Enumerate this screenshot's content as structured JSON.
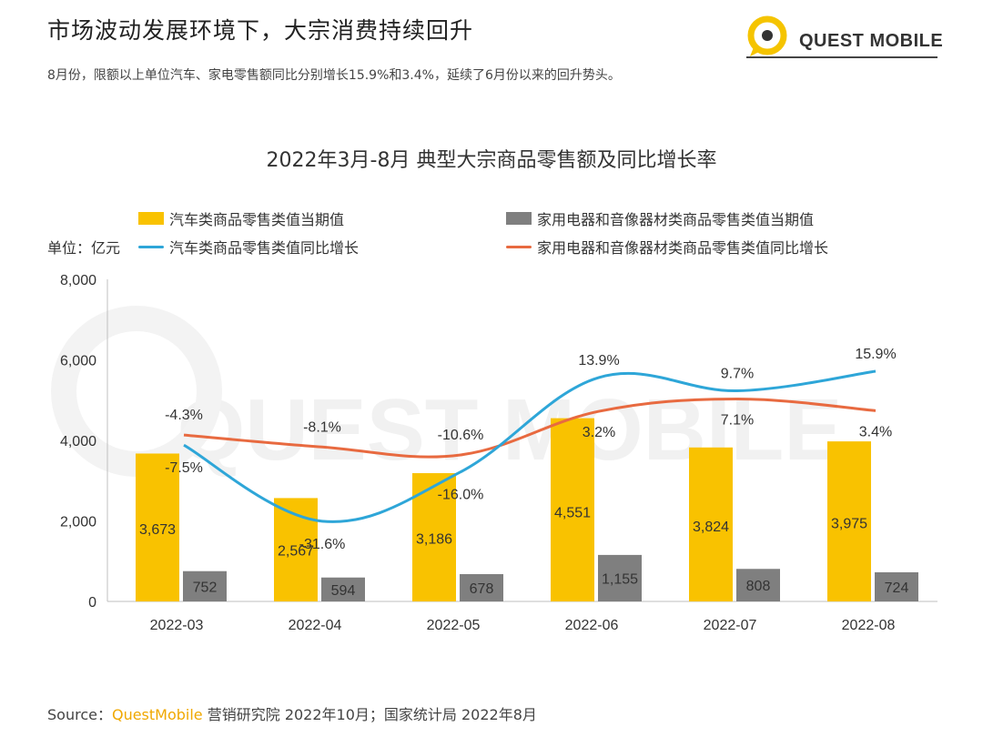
{
  "header": {
    "title": "市场波动发展环境下，大宗消费持续回升",
    "subtitle": "8月份，限额以上单位汽车、家电零售额同比分别增长15.9%和3.4%，延续了6月份以来的回升势头。",
    "logo_text": "QUEST MOBILE",
    "watermark_text": "QUEST MOBILE"
  },
  "colors": {
    "car_bar": "#F9C200",
    "appliance_bar": "#7F7F7F",
    "car_line": "#2EA6D8",
    "appliance_line": "#E86A40",
    "logo_yellow": "#F5C400"
  },
  "chart_data": {
    "type": "bar",
    "title": "2022年3月-8月 典型大宗商品零售额及同比增长率",
    "unit_label": "单位：亿元",
    "categories": [
      "2022-03",
      "2022-04",
      "2022-05",
      "2022-06",
      "2022-07",
      "2022-08"
    ],
    "y_ticks": [
      "8,000",
      "6,000",
      "4,000",
      "2,000",
      "0"
    ],
    "ylim": [
      0,
      8000
    ],
    "series": [
      {
        "name": "汽车类商品零售类值当期值",
        "type": "bar",
        "values": [
          3673,
          2567,
          3186,
          4551,
          3824,
          3975
        ],
        "labels": [
          "3,673",
          "2,567",
          "3,186",
          "4,551",
          "3,824",
          "3,975"
        ]
      },
      {
        "name": "家用电器和音像器材类商品零售类值当期值",
        "type": "bar",
        "values": [
          752,
          594,
          678,
          1155,
          808,
          724
        ],
        "labels": [
          "752",
          "594",
          "678",
          "1,155",
          "808",
          "724"
        ]
      },
      {
        "name": "汽车类商品零售类值同比增长",
        "type": "line",
        "values": [
          -7.5,
          -31.6,
          -16.0,
          13.9,
          9.7,
          15.9
        ],
        "labels": [
          "-7.5%",
          "-31.6%",
          "-16.0%",
          "13.9%",
          "9.7%",
          "15.9%"
        ]
      },
      {
        "name": "家用电器和音像器材类商品零售类值同比增长",
        "type": "line",
        "values": [
          -4.3,
          -8.1,
          -10.6,
          3.2,
          7.1,
          3.4
        ],
        "labels": [
          "-4.3%",
          "-8.1%",
          "-10.6%",
          "3.2%",
          "7.1%",
          "3.4%"
        ]
      }
    ],
    "line_axis": "secondary, unlabeled",
    "grid": false,
    "legend_placement": "top"
  },
  "footer": {
    "source_prefix": "Source：",
    "source_brand": "QuestMobile",
    "source_rest": " 营销研究院 2022年10月；国家统计局 2022年8月"
  }
}
